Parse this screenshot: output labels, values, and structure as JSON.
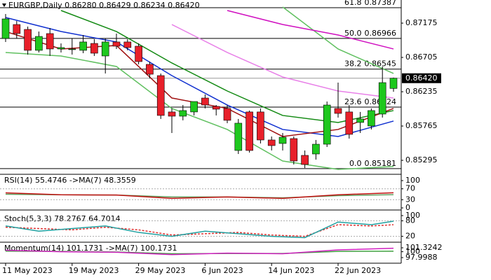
{
  "chart_data": [
    {
      "type": "candlestick",
      "title": "EURGBP,Daily  0.86280 0.86429 0.86234 0.86420",
      "categories": [
        "11 May 2023",
        null,
        null,
        null,
        null,
        null,
        "19 May 2023",
        null,
        null,
        null,
        null,
        null,
        "29 May 2023",
        null,
        null,
        null,
        null,
        null,
        "6 Jun 2023",
        null,
        null,
        null,
        null,
        null,
        "14 Jun 2023",
        null,
        null,
        null,
        null,
        null,
        "22 Jun 2023",
        null,
        null,
        null,
        null,
        null
      ],
      "open": [
        0.86965,
        0.87156,
        0.87089,
        0.86802,
        0.87032,
        0.86821,
        0.86821,
        0.86802,
        0.86897,
        0.86725,
        0.86917,
        0.86917,
        0.86859,
        0.8661,
        0.86456,
        0.85958,
        0.859,
        0.85958,
        0.86149,
        0.86034,
        0.86006,
        0.8543,
        0.85958,
        0.85958,
        0.85574,
        0.85526,
        0.85593,
        0.85363,
        0.85382,
        0.85516,
        0.86006,
        0.85958,
        0.85814,
        0.85766,
        0.85929,
        0.8628
      ],
      "high": [
        0.873,
        0.87204,
        0.87128,
        0.8706,
        0.87108,
        0.86897,
        0.86965,
        0.87012,
        0.86955,
        0.86965,
        0.87032,
        0.86955,
        0.86897,
        0.86648,
        0.86485,
        0.86006,
        0.86053,
        0.86101,
        0.86197,
        0.86053,
        0.86053,
        0.85862,
        0.85977,
        0.86006,
        0.85622,
        0.8567,
        0.85622,
        0.8543,
        0.85574,
        0.86101,
        0.8636,
        0.86053,
        0.85958,
        0.86006,
        0.86581,
        0.86429
      ],
      "low": [
        0.86917,
        0.86965,
        0.86744,
        0.86773,
        0.86725,
        0.86773,
        0.86744,
        0.86763,
        0.86725,
        0.86485,
        0.86821,
        0.86802,
        0.8661,
        0.86418,
        0.85862,
        0.8567,
        0.85843,
        0.8591,
        0.86006,
        0.8591,
        0.85804,
        0.85382,
        0.85401,
        0.85526,
        0.8543,
        0.8543,
        0.85238,
        0.8519,
        0.85305,
        0.85478,
        0.85881,
        0.85593,
        0.8567,
        0.85718,
        0.85881,
        0.86234
      ],
      "close": [
        0.87233,
        0.87032,
        0.86802,
        0.86993,
        0.86821,
        0.8684,
        0.86821,
        0.86917,
        0.86763,
        0.86917,
        0.86859,
        0.8684,
        0.86648,
        0.86475,
        0.8591,
        0.859,
        0.85977,
        0.86101,
        0.86053,
        0.85996,
        0.85843,
        0.85804,
        0.8543,
        0.85574,
        0.85497,
        0.85612,
        0.85286,
        0.85238,
        0.85516,
        0.86053,
        0.85938,
        0.85651,
        0.85862,
        0.85977,
        0.8636,
        0.8642
      ],
      "up_color": "#1ec81e",
      "down_color": "#e8202a",
      "series": [
        {
          "color": "#e880e8",
          "x": [
            15,
            20,
            25,
            30,
            35
          ],
          "values": [
            0.87156,
            0.86773,
            0.86437,
            0.86245,
            0.86149
          ]
        },
        {
          "color": "#60c060",
          "x": [
            25,
            30,
            35
          ],
          "values": [
            0.87396,
            0.86821,
            0.86485
          ]
        },
        {
          "color": "#60c060",
          "x": [
            0,
            5,
            10,
            15,
            20,
            25,
            30,
            35
          ],
          "values": [
            0.86773,
            0.86725,
            0.86581,
            0.86006,
            0.85718,
            0.85286,
            0.85171,
            0.8521
          ]
        },
        {
          "color": "#d010c0",
          "x": [
            20,
            25,
            30,
            35
          ],
          "values": [
            0.87348,
            0.87156,
            0.87012,
            0.86821
          ]
        },
        {
          "color": "#138a13",
          "x": [
            5,
            10,
            15,
            20,
            25,
            30,
            35
          ],
          "values": [
            0.87348,
            0.8706,
            0.86629,
            0.86245,
            0.8591,
            0.85814,
            0.85977
          ]
        },
        {
          "color": "#1030d0",
          "x": [
            0,
            5,
            10,
            15,
            20,
            25,
            30,
            35
          ],
          "values": [
            0.87252,
            0.8706,
            0.86917,
            0.86456,
            0.86053,
            0.85718,
            0.85622,
            0.85833
          ]
        },
        {
          "color": "#a01010",
          "x": [
            0,
            5,
            10,
            15,
            20,
            25,
            30,
            35
          ],
          "values": [
            0.8706,
            0.86821,
            0.86869,
            0.86149,
            0.86006,
            0.85622,
            0.85718,
            0.86006
          ]
        }
      ],
      "levels": [
        {
          "ratio": "61.8",
          "value": 0.87387
        },
        {
          "ratio": "50.0",
          "value": 0.86966
        },
        {
          "ratio": "38.2",
          "value": 0.86545
        },
        {
          "ratio": "23.6",
          "value": 0.86024
        },
        {
          "ratio": "0.0",
          "value": 0.85181
        }
      ],
      "last_price": {
        "value": 0.8642,
        "label": "0.86420"
      },
      "ylim": [
        0.85142,
        0.87492
      ],
      "yticks": [
        0.87175,
        0.86705,
        0.86235,
        0.85765,
        0.85295
      ]
    },
    {
      "type": "line",
      "title": "RSI(14) 55.4746 ->MA(7) 48.3559",
      "series": [
        {
          "color": "#60a060",
          "x": [
            0,
            5,
            10,
            15,
            20,
            25,
            30,
            35
          ],
          "values": [
            50,
            48,
            47,
            40,
            40,
            37,
            45,
            48.36
          ]
        },
        {
          "color": "#c01010",
          "x": [
            0,
            5,
            10,
            15,
            20,
            25,
            30,
            35
          ],
          "values": [
            55,
            48,
            47,
            35,
            40,
            35,
            48,
            55.47
          ]
        }
      ],
      "ylim": [
        0,
        100
      ],
      "yticks": [
        100,
        70,
        30,
        0
      ],
      "levels": [
        70,
        30
      ]
    },
    {
      "type": "line",
      "title": "Stoch(5,3,3) 78.2767 64.7014",
      "series": [
        {
          "color": "#e03030",
          "dash": true,
          "x": [
            0,
            3,
            6,
            9,
            12,
            15,
            18,
            21,
            24,
            27,
            30,
            33,
            35
          ],
          "values": [
            55,
            50,
            45,
            55,
            45,
            25,
            30,
            35,
            25,
            20,
            65,
            60,
            64.7
          ]
        },
        {
          "color": "#20a0a0",
          "x": [
            0,
            3,
            6,
            9,
            12,
            15,
            18,
            21,
            24,
            27,
            30,
            33,
            35
          ],
          "values": [
            60,
            40,
            50,
            60,
            35,
            20,
            40,
            30,
            20,
            15,
            75,
            65,
            78.28
          ]
        }
      ],
      "ylim": [
        0,
        100
      ],
      "yticks": [
        100,
        80,
        20
      ],
      "levels": [
        80,
        20
      ]
    },
    {
      "type": "line",
      "title": "Momentum(14) 101.1731 ->MA(7) 100.1731",
      "series": [
        {
          "color": "#40a040",
          "x": [
            0,
            5,
            10,
            15,
            20,
            25,
            30,
            35
          ],
          "values": [
            100.2,
            100.1,
            99.9,
            99.3,
            99.4,
            99.4,
            100.1,
            100.17
          ]
        },
        {
          "color": "#d020c0",
          "x": [
            0,
            5,
            10,
            15,
            20,
            25,
            30,
            35
          ],
          "values": [
            100.5,
            100,
            99.8,
            99,
            99.5,
            99.3,
            100.6,
            101.17
          ]
        }
      ],
      "ylim": [
        97.9988,
        101.3242
      ],
      "yticks": [
        101.3242,
        100,
        97.9988
      ]
    }
  ]
}
